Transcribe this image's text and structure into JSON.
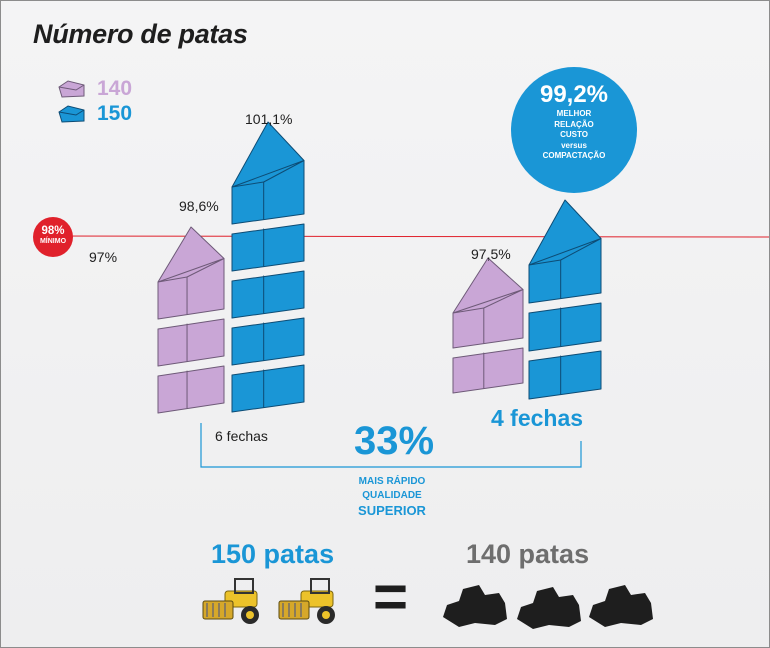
{
  "title": "Número de patas",
  "colors": {
    "lilac": "#c9a6d6",
    "lilac_stroke": "#6e5a78",
    "blue": "#1a96d6",
    "blue_stroke": "#0d4c75",
    "red": "#e0212b",
    "dark": "#6e6e6e",
    "roller": "#ecc22a"
  },
  "legend": [
    {
      "label": "140",
      "color": "#c9a6d6"
    },
    {
      "label": "150",
      "color": "#1a96d6"
    }
  ],
  "minimum": {
    "value": "98%",
    "label": "MÍNIMO"
  },
  "best_badge": {
    "value": "99,2%",
    "lines": [
      "MELHOR",
      "RELAÇÃO",
      "CUSTO",
      "versus",
      "COMPACTAÇÃO"
    ]
  },
  "comparison": {
    "value": "33%",
    "lines": [
      "MAIS RÁPIDO",
      "QUALIDADE",
      "SUPERIOR"
    ]
  },
  "bottom": {
    "left": "150 patas",
    "equals": "=",
    "right": "140 patas"
  },
  "chart_data": {
    "type": "bar",
    "series": [
      {
        "name": "140",
        "groups": [
          {
            "label": "6 fechas",
            "blocks": 3,
            "values": [
              "97%",
              "98,6%"
            ]
          },
          {
            "label": "",
            "blocks": 2,
            "values": [
              "97,5%"
            ]
          }
        ]
      },
      {
        "name": "150",
        "groups": [
          {
            "label": "",
            "blocks": 5,
            "values": [
              "101,1%"
            ]
          },
          {
            "label": "4 fechas",
            "blocks": 3,
            "values": []
          }
        ]
      }
    ],
    "reference_line": "98%"
  },
  "labels": {
    "g1_140_low": "97%",
    "g1_140_high": "98,6%",
    "g1_150": "101,1%",
    "g2_140": "97,5%",
    "g1_passes": "6 fechas",
    "g2_passes": "4 fechas"
  }
}
